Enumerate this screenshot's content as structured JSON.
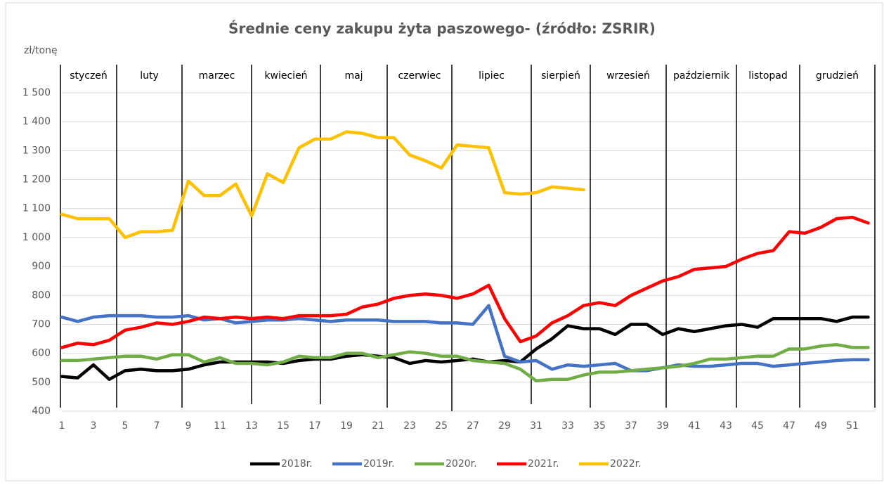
{
  "chart_data": {
    "type": "line",
    "title": "Średnie ceny zakupu żyta paszowego- (źródło: ZSRIR)",
    "y_label": "zł/tonę",
    "months": [
      "styczeń",
      "luty",
      "marzec",
      "kwiecień",
      "maj",
      "czerwiec",
      "lipiec",
      "sierpień",
      "wrzesień",
      "październik",
      "listopad",
      "grudzień"
    ],
    "x": [
      1,
      2,
      3,
      4,
      5,
      6,
      7,
      8,
      9,
      10,
      11,
      12,
      13,
      14,
      15,
      16,
      17,
      18,
      19,
      20,
      21,
      22,
      23,
      24,
      25,
      26,
      27,
      28,
      29,
      30,
      31,
      32,
      33,
      34,
      35,
      36,
      37,
      38,
      39,
      40,
      41,
      42,
      43,
      44,
      45,
      46,
      47,
      48,
      49,
      50,
      51,
      52
    ],
    "xlim": [
      1,
      52
    ],
    "xticks": [
      1,
      3,
      5,
      7,
      9,
      11,
      13,
      15,
      17,
      19,
      21,
      23,
      25,
      27,
      29,
      31,
      33,
      35,
      37,
      39,
      41,
      43,
      45,
      47,
      49,
      51
    ],
    "ylim": [
      400,
      1500
    ],
    "yticks": [
      400,
      500,
      600,
      700,
      800,
      900,
      {
        "value": 1000,
        "label": "1 000"
      },
      {
        "value": 1100,
        "label": "1 100"
      },
      {
        "value": 1200,
        "label": "1 200"
      },
      {
        "value": 1300,
        "label": "1 300"
      },
      {
        "value": 1400,
        "label": "1 400"
      },
      {
        "value": 1500,
        "label": "1 500"
      }
    ],
    "grid": true,
    "legend": "bottom",
    "series": [
      {
        "name": "2018r.",
        "color": "#000000",
        "values": [
          520,
          515,
          560,
          510,
          540,
          545,
          540,
          540,
          545,
          560,
          570,
          570,
          570,
          570,
          565,
          575,
          580,
          580,
          590,
          595,
          590,
          585,
          565,
          575,
          570,
          575,
          580,
          570,
          575,
          570,
          615,
          650,
          695,
          685,
          685,
          665,
          700,
          700,
          665,
          685,
          675,
          685,
          695,
          700,
          690,
          720,
          720,
          720,
          720,
          710,
          725,
          725
        ]
      },
      {
        "name": "2019r.",
        "color": "#4472c4",
        "values": [
          725,
          710,
          725,
          730,
          730,
          730,
          725,
          725,
          730,
          715,
          720,
          705,
          710,
          715,
          715,
          720,
          715,
          710,
          715,
          715,
          715,
          710,
          710,
          710,
          705,
          705,
          700,
          765,
          590,
          570,
          575,
          545,
          560,
          555,
          560,
          565,
          540,
          540,
          550,
          560,
          555,
          555,
          560,
          565,
          565,
          555,
          560,
          565,
          570,
          575,
          578,
          578
        ]
      },
      {
        "name": "2020r.",
        "color": "#70ad47",
        "values": [
          575,
          575,
          580,
          585,
          590,
          590,
          580,
          595,
          595,
          570,
          585,
          565,
          565,
          560,
          570,
          590,
          585,
          585,
          600,
          600,
          585,
          595,
          605,
          600,
          590,
          590,
          575,
          570,
          565,
          545,
          505,
          510,
          510,
          525,
          535,
          535,
          540,
          545,
          550,
          555,
          565,
          580,
          580,
          585,
          590,
          590,
          615,
          615,
          625,
          630,
          620,
          620
        ]
      },
      {
        "name": "2021r.",
        "color": "#ff0000",
        "values": [
          620,
          635,
          630,
          645,
          680,
          690,
          705,
          700,
          710,
          725,
          720,
          725,
          720,
          725,
          720,
          730,
          730,
          730,
          735,
          760,
          770,
          790,
          800,
          805,
          800,
          790,
          805,
          835,
          720,
          640,
          660,
          705,
          730,
          765,
          775,
          765,
          800,
          825,
          850,
          865,
          890,
          895,
          900,
          925,
          945,
          955,
          1020,
          1015,
          1035,
          1065,
          1070,
          1050
        ]
      },
      {
        "name": "2022r.",
        "color": "#ffc000",
        "values": [
          1080,
          1065,
          1065,
          1065,
          1000,
          1020,
          1020,
          1025,
          1195,
          1145,
          1145,
          1185,
          1075,
          1220,
          1190,
          1310,
          1340,
          1340,
          1365,
          1360,
          1345,
          1345,
          1285,
          1265,
          1240,
          1320,
          1315,
          1310,
          1155,
          1150,
          1155,
          1175,
          1170,
          1165,
          null,
          null,
          null,
          null,
          null,
          null,
          null,
          null,
          null,
          null,
          null,
          null,
          null,
          null,
          null,
          null,
          null,
          null
        ]
      }
    ]
  }
}
